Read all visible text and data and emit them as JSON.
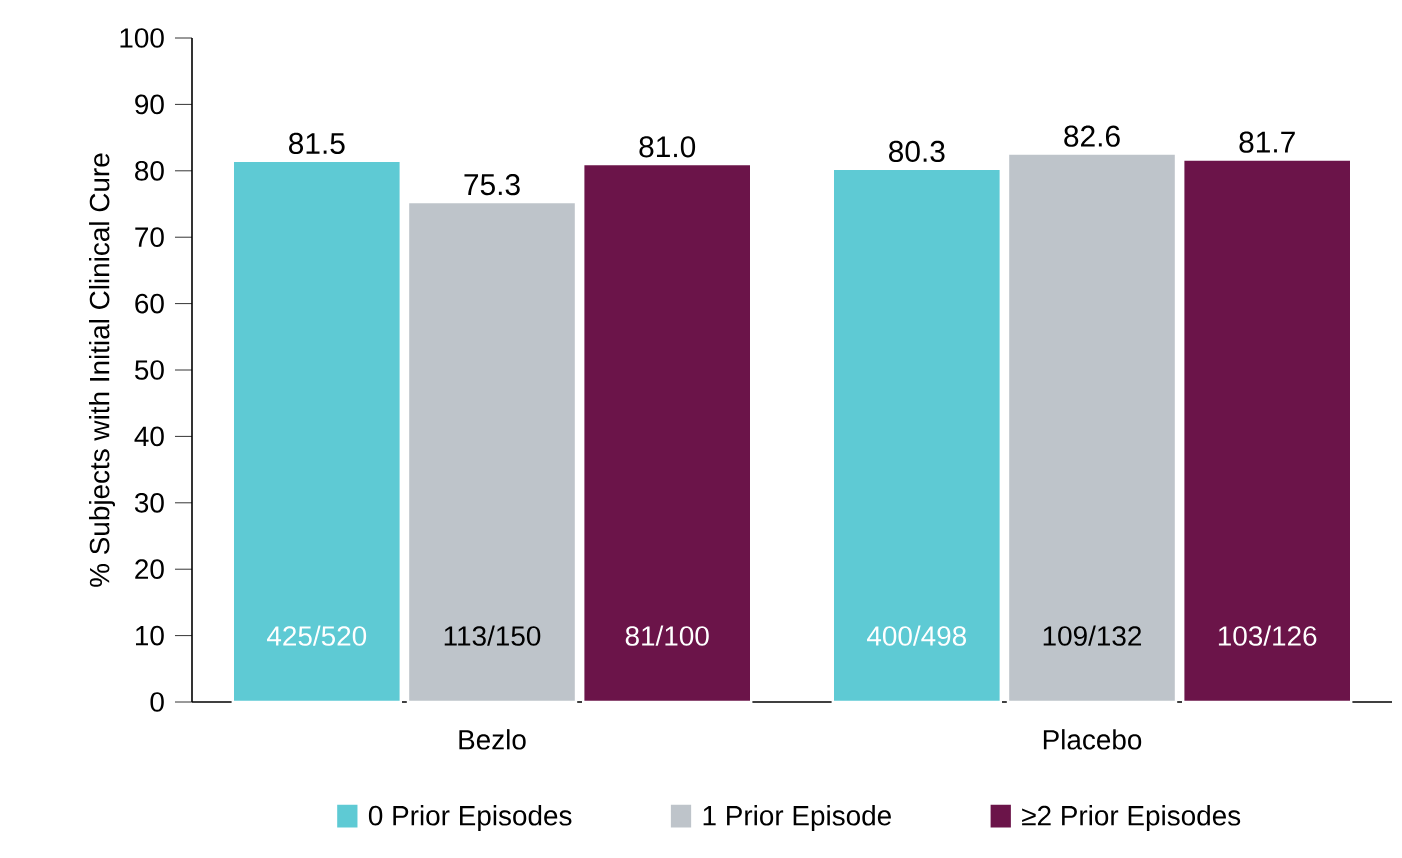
{
  "chart_data": {
    "type": "bar",
    "ylabel": "% Subjects with Initial Clinical Cure",
    "categories": [
      "Bezlo",
      "Placebo"
    ],
    "series": [
      {
        "name": "0 Prior Episodes",
        "color": "#5ecad4",
        "values": [
          81.5,
          80.3
        ],
        "value_labels": [
          "81.5",
          "80.3"
        ]
      },
      {
        "name": "1 Prior Episode",
        "color": "#bec4ca",
        "values": [
          75.3,
          82.6
        ],
        "value_labels": [
          "75.3",
          "82.6"
        ]
      },
      {
        "name": "≥2 Prior Episodes",
        "color": "#6b1449",
        "values": [
          81.0,
          81.7
        ],
        "value_labels": [
          "81.0",
          "81.7"
        ]
      }
    ],
    "annotations": [
      "425/520",
      "113/150",
      "81/100",
      "400/498",
      "109/132",
      "103/126"
    ],
    "ylim": [
      0,
      100
    ],
    "yticks": [
      0,
      10,
      20,
      30,
      40,
      50,
      60,
      70,
      80,
      90,
      100
    ],
    "legend": "bottom",
    "grid": false
  }
}
